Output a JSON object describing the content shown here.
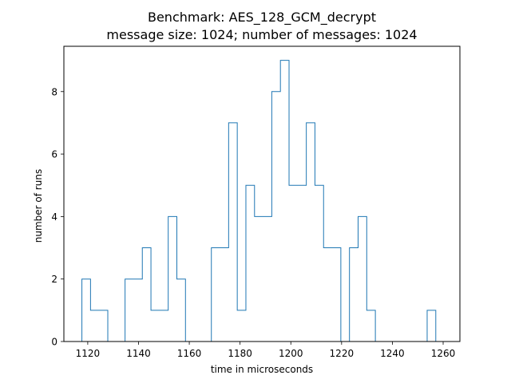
{
  "chart_data": {
    "type": "histogram",
    "title": "Benchmark: AES_128_GCM_decrypt",
    "subtitle": "message size: 1024; number of messages: 1024",
    "xlabel": "time in microseconds",
    "ylabel": "number of runs",
    "xlim": [
      1110.6,
      1266.6
    ],
    "ylim": [
      0,
      9.45
    ],
    "x_ticks": [
      1120,
      1140,
      1160,
      1180,
      1200,
      1220,
      1240,
      1260
    ],
    "y_ticks": [
      0,
      2,
      4,
      6,
      8
    ],
    "histtype": "step",
    "series_color": "#1f77b4",
    "bin_edges": [
      1117.7,
      1121.1,
      1124.5,
      1127.9,
      1131.3,
      1134.7,
      1138.1,
      1141.5,
      1144.9,
      1148.3,
      1151.7,
      1155.1,
      1158.5,
      1161.9,
      1165.3,
      1168.7,
      1172.1,
      1175.5,
      1178.9,
      1182.3,
      1185.7,
      1189.1,
      1192.5,
      1195.9,
      1199.3,
      1202.7,
      1206.1,
      1209.5,
      1212.9,
      1216.3,
      1219.7,
      1223.1,
      1226.5,
      1229.9,
      1233.3,
      1236.7,
      1240.1,
      1243.5,
      1246.9,
      1250.3,
      1253.7,
      1257.1,
      1260.5
    ],
    "counts": [
      2,
      1,
      1,
      0,
      0,
      2,
      2,
      3,
      1,
      1,
      4,
      2,
      0,
      0,
      0,
      3,
      3,
      7,
      1,
      5,
      4,
      4,
      8,
      9,
      5,
      5,
      7,
      5,
      3,
      3,
      0,
      3,
      4,
      1,
      0,
      0,
      0,
      0,
      0,
      0,
      1,
      0
    ]
  }
}
